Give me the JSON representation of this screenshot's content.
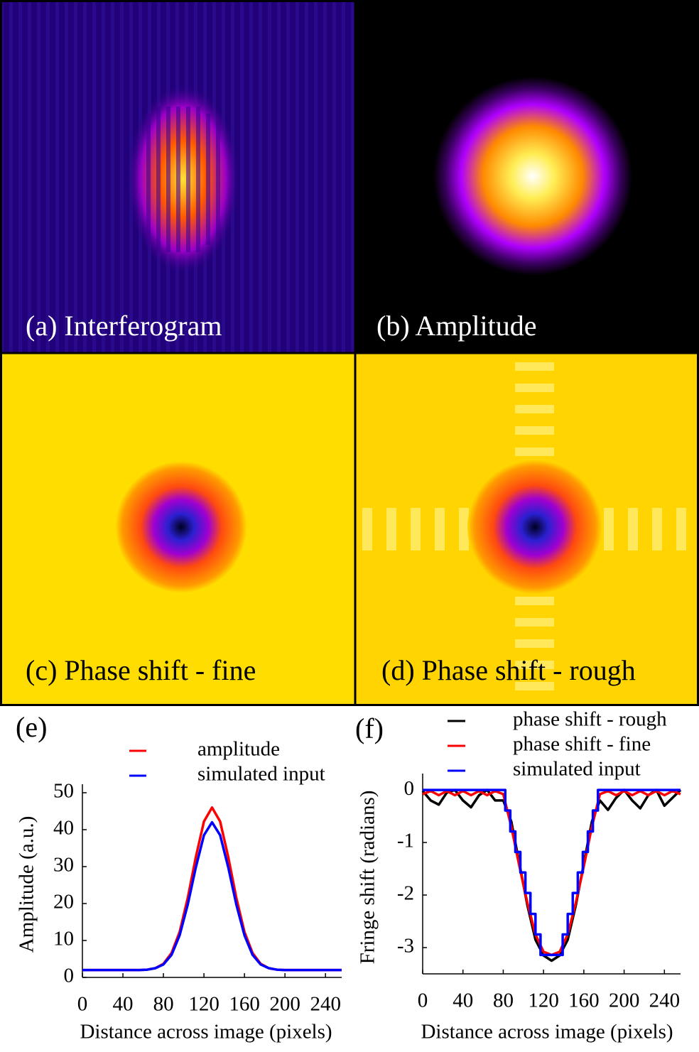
{
  "image_panels": [
    {
      "label": "(a) Interferogram"
    },
    {
      "label": "(b) Amplitude"
    },
    {
      "label": "(c) Phase shift - fine"
    },
    {
      "label": "(d) Phase shift - rough"
    }
  ],
  "chart_data": [
    {
      "type": "line",
      "panel_label": "(e)",
      "xlabel": "Distance across image (pixels)",
      "ylabel": "Amplitude (a.u.)",
      "xlim": [
        0,
        256
      ],
      "ylim": [
        0,
        50
      ],
      "xticks": [
        0,
        40,
        80,
        120,
        160,
        200,
        240
      ],
      "yticks": [
        0,
        10,
        20,
        30,
        40,
        50
      ],
      "x": [
        0,
        8,
        16,
        24,
        32,
        40,
        48,
        56,
        64,
        72,
        80,
        88,
        96,
        104,
        112,
        120,
        128,
        136,
        144,
        152,
        160,
        168,
        176,
        184,
        192,
        200,
        208,
        216,
        224,
        232,
        240,
        248,
        256
      ],
      "series": [
        {
          "name": "amplitude",
          "color": "#ff0000",
          "values": [
            2,
            2,
            2,
            2,
            2,
            2,
            2,
            2,
            2.1,
            2.5,
            3.7,
            6.6,
            12.3,
            21.5,
            32.6,
            42.2,
            46,
            42.2,
            32.6,
            21.5,
            12.3,
            6.6,
            3.7,
            2.5,
            2.1,
            2,
            2,
            2,
            2,
            2,
            2,
            2,
            2
          ]
        },
        {
          "name": "simulated input",
          "color": "#0000ff",
          "values": [
            2,
            2,
            2,
            2,
            2,
            2,
            2,
            2,
            2.1,
            2.5,
            3.5,
            6.1,
            11.4,
            19.7,
            29.8,
            38.5,
            42,
            38.5,
            29.8,
            19.7,
            11.4,
            6.1,
            3.5,
            2.5,
            2.1,
            2,
            2,
            2,
            2,
            2,
            2,
            2,
            2
          ]
        }
      ]
    },
    {
      "type": "line",
      "panel_label": "(f)",
      "xlabel": "Distance across image (pixels)",
      "ylabel": "Fringe shift (radians)",
      "xlim": [
        0,
        256
      ],
      "ylim": [
        -3.5,
        0.15
      ],
      "xticks": [
        0,
        40,
        80,
        120,
        160,
        200,
        240
      ],
      "yticks": [
        0,
        -1,
        -2,
        -3
      ],
      "series": [
        {
          "name": "phase shift - rough",
          "color": "#000000",
          "x": [
            0,
            8,
            16,
            24,
            32,
            40,
            48,
            56,
            64,
            72,
            80,
            88,
            96,
            104,
            112,
            120,
            128,
            136,
            144,
            152,
            160,
            168,
            176,
            184,
            192,
            200,
            208,
            216,
            224,
            232,
            240,
            248,
            256
          ],
          "values": [
            -0.02,
            -0.2,
            -0.28,
            -0.05,
            0,
            -0.2,
            -0.33,
            -0.1,
            0,
            -0.2,
            -0.2,
            -0.6,
            -1.4,
            -2.2,
            -2.85,
            -3.15,
            -3.25,
            -3.15,
            -2.85,
            -2.2,
            -1.4,
            -0.6,
            -0.2,
            -0.38,
            -0.15,
            0,
            -0.2,
            -0.35,
            -0.1,
            0,
            -0.3,
            -0.15,
            0
          ]
        },
        {
          "name": "phase shift - fine",
          "color": "#ff0000",
          "x": [
            0,
            8,
            16,
            24,
            32,
            40,
            48,
            56,
            64,
            72,
            80,
            88,
            96,
            104,
            112,
            120,
            128,
            136,
            144,
            152,
            160,
            168,
            176,
            184,
            192,
            200,
            208,
            216,
            224,
            232,
            240,
            248,
            256
          ],
          "values": [
            -0.08,
            -0.02,
            -0.1,
            -0.02,
            -0.1,
            -0.02,
            -0.1,
            -0.02,
            -0.1,
            -0.02,
            -0.08,
            -0.7,
            -1.45,
            -2.15,
            -2.75,
            -3.08,
            -3.14,
            -3.08,
            -2.75,
            -2.15,
            -1.45,
            -0.7,
            -0.08,
            -0.02,
            -0.1,
            -0.02,
            -0.1,
            -0.02,
            -0.1,
            -0.02,
            -0.1,
            -0.02,
            -0.08
          ]
        },
        {
          "name": "simulated input",
          "color": "#0000ff",
          "x": [
            0,
            82,
            82,
            87,
            87,
            92,
            92,
            97,
            97,
            102,
            102,
            107,
            107,
            112,
            112,
            117,
            117,
            139,
            139,
            144,
            144,
            149,
            149,
            154,
            154,
            159,
            159,
            164,
            164,
            169,
            169,
            174,
            174,
            256
          ],
          "values": [
            0,
            0,
            -0.39,
            -0.39,
            -0.79,
            -0.79,
            -1.18,
            -1.18,
            -1.57,
            -1.57,
            -1.96,
            -1.96,
            -2.36,
            -2.36,
            -2.75,
            -2.75,
            -3.14,
            -3.14,
            -2.75,
            -2.75,
            -2.36,
            -2.36,
            -1.96,
            -1.96,
            -1.57,
            -1.57,
            -1.18,
            -1.18,
            -0.79,
            -0.79,
            -0.39,
            -0.39,
            0,
            0
          ]
        }
      ]
    }
  ]
}
